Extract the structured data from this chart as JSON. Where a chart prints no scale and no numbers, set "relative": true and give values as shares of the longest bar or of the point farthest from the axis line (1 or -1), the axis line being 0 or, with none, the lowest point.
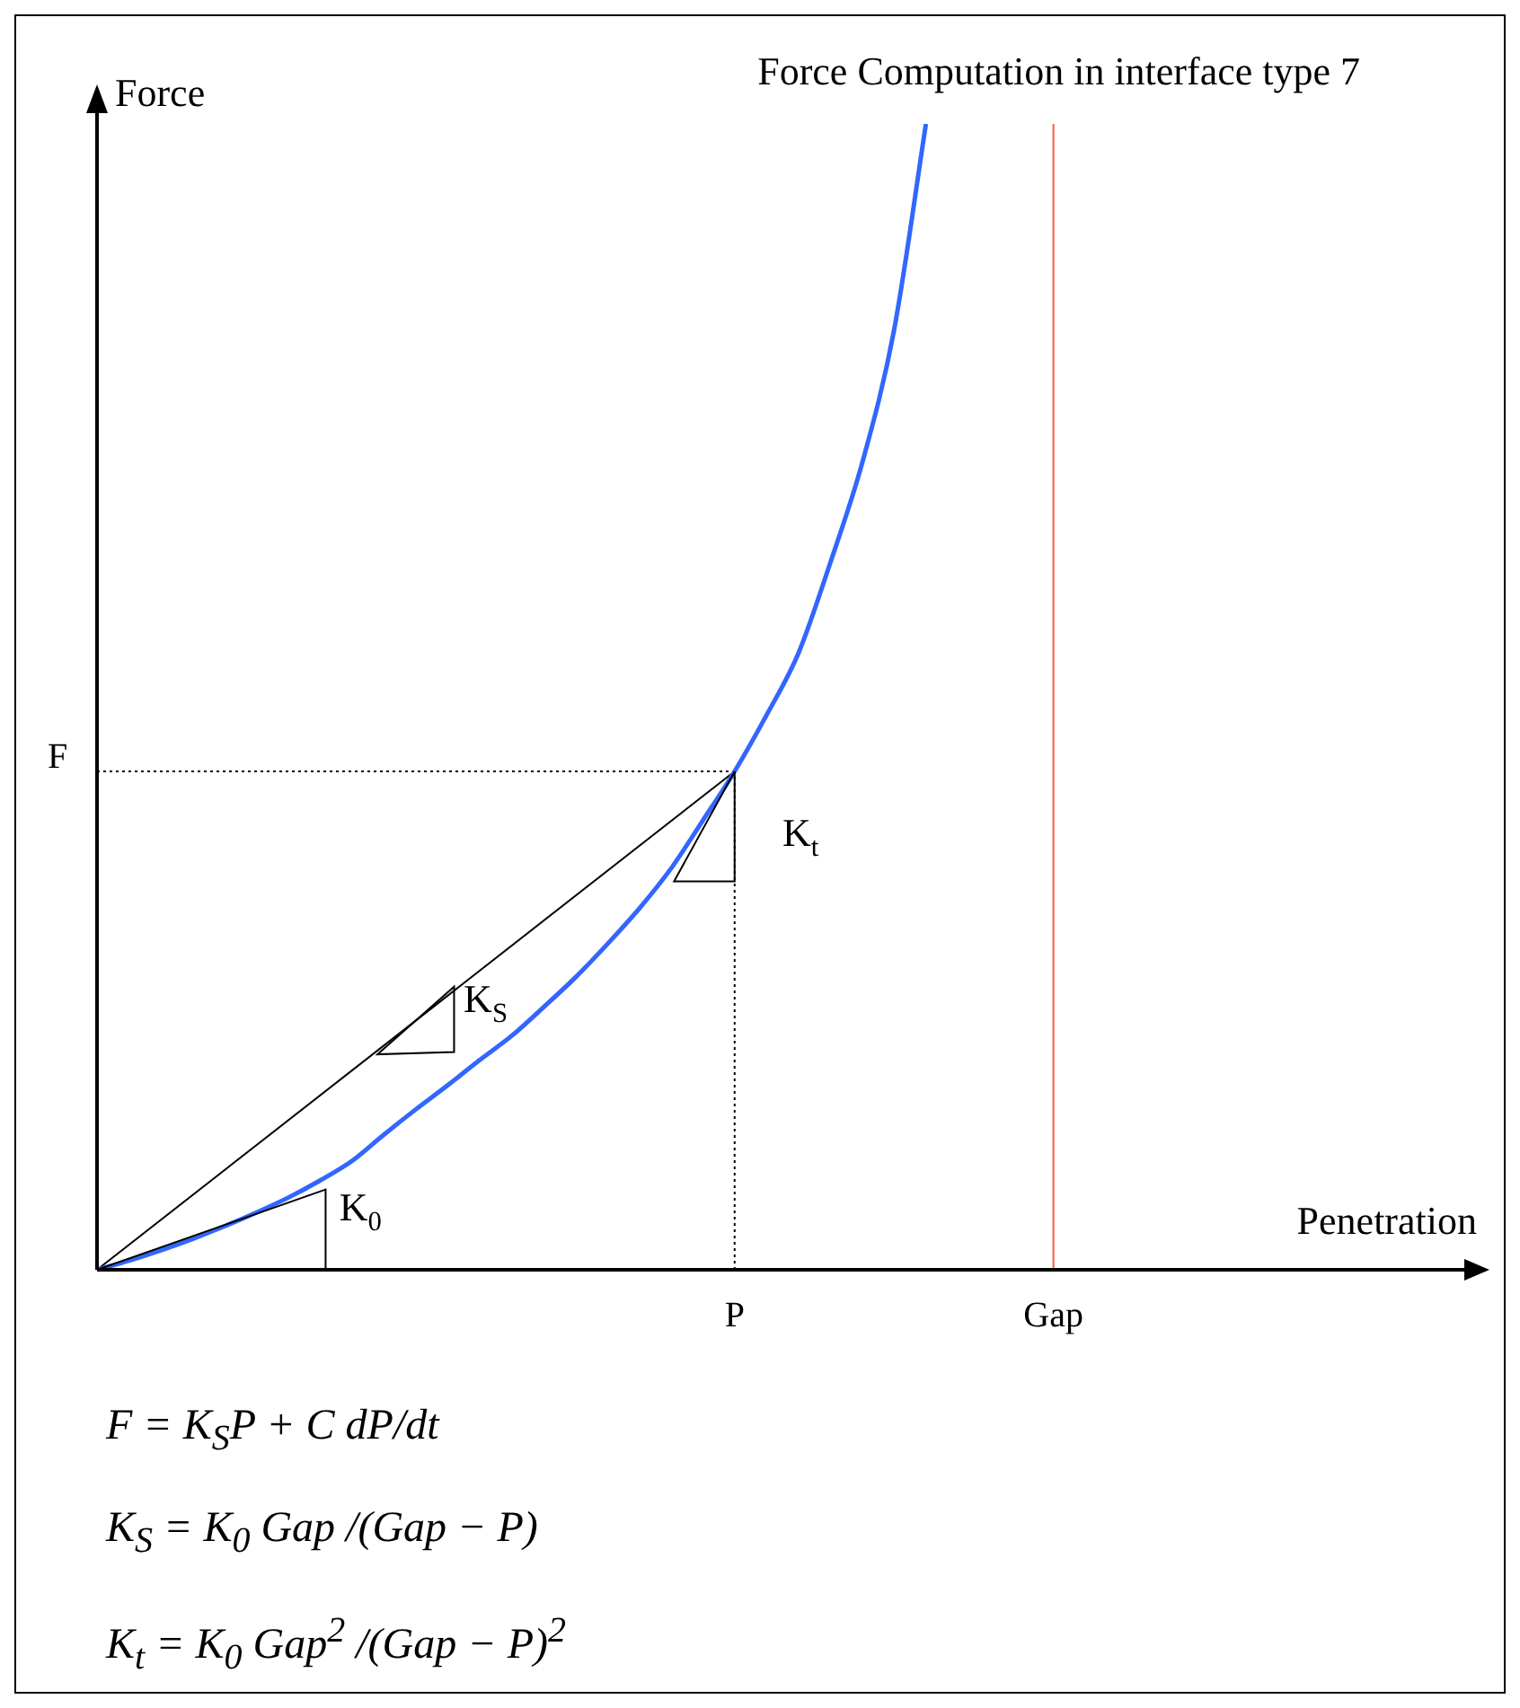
{
  "chart_data": {
    "type": "line",
    "title": "Force Computation in interface type 7",
    "xlabel": "Penetration",
    "ylabel": "Force",
    "relative": true,
    "marker": "none",
    "categories": [
      null,
      null,
      null,
      null,
      null,
      null,
      null,
      null,
      null,
      null,
      null,
      null,
      null,
      null,
      null,
      null,
      null,
      null,
      null,
      null,
      "P",
      null,
      null,
      null,
      null,
      null,
      null,
      null,
      null,
      null,
      "Gap",
      null,
      null,
      null,
      null,
      null,
      null,
      null,
      null,
      null,
      null,
      null,
      null,
      null
    ],
    "series": [
      {
        "color": "#3366ff",
        "values": [
          0,
          0.008,
          0.017,
          0.027,
          0.038,
          0.05,
          0.063,
          0.078,
          0.095,
          0.118,
          0.14,
          0.161,
          0.183,
          0.204,
          0.229,
          0.255,
          0.284,
          0.315,
          0.35,
          0.392,
          0.435,
          0.484,
          0.538,
          0.617,
          0.704,
          0.82,
          1,
          null,
          null,
          null,
          null,
          null,
          null,
          null,
          null,
          null,
          null,
          null,
          null,
          null,
          null,
          null,
          null,
          null
        ]
      },
      {
        "color": "#000000",
        "values": [
          0,
          null,
          null,
          null,
          null,
          null,
          null,
          null,
          null,
          null,
          null,
          null,
          null,
          null,
          null,
          null,
          null,
          null,
          null,
          null,
          0.435,
          null,
          null,
          null,
          null,
          null,
          null,
          null,
          null,
          null,
          null,
          null,
          null,
          null,
          null,
          null,
          null,
          null,
          null,
          null,
          null,
          null,
          null,
          null
        ]
      }
    ],
    "ref_lines": [
      {
        "axis": "y",
        "value": 0.435,
        "label": "F",
        "color": "#000000",
        "line_style": "dotted"
      },
      {
        "axis": "x",
        "value": "P",
        "color": "#000000",
        "line_style": "dotted"
      },
      {
        "axis": "x",
        "value": "Gap",
        "color": "#ff5a3c",
        "line_style": "solid"
      }
    ],
    "annotations": [
      "K$_{0}$",
      "K$_{S}$",
      "K$_{t}$",
      "F = K$_{S}$P + C dP/dt",
      "K$_{S}$ = K$_{0}$ Gap /(Gap − P)",
      "K$_{t}$ = K$_{0}$ Gap$^{2}$ /(Gap − P)$^{2}$"
    ]
  }
}
